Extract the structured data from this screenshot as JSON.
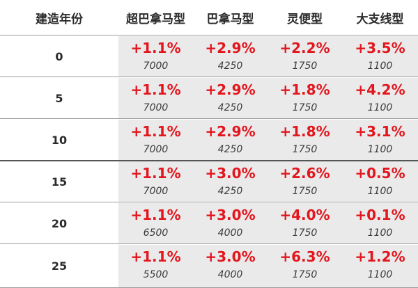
{
  "headers": [
    "建造年份",
    "超巴拿马型",
    "巴拿马型",
    "灵便型",
    "大支线型"
  ],
  "rows": [
    {
      "year": "0",
      "cells": [
        {
          "pct": "+1.1%",
          "val": "7000"
        },
        {
          "pct": "+2.9%",
          "val": "4250"
        },
        {
          "pct": "+2.2%",
          "val": "1750"
        },
        {
          "pct": "+3.5%",
          "val": "1100"
        }
      ]
    },
    {
      "year": "5",
      "cells": [
        {
          "pct": "+1.1%",
          "val": "7000"
        },
        {
          "pct": "+2.9%",
          "val": "4250"
        },
        {
          "pct": "+1.8%",
          "val": "1750"
        },
        {
          "pct": "+4.2%",
          "val": "1100"
        }
      ]
    },
    {
      "year": "10",
      "cells": [
        {
          "pct": "+1.1%",
          "val": "7000"
        },
        {
          "pct": "+2.9%",
          "val": "4250"
        },
        {
          "pct": "+1.8%",
          "val": "1750"
        },
        {
          "pct": "+3.1%",
          "val": "1100"
        }
      ]
    },
    {
      "year": "15",
      "cells": [
        {
          "pct": "+1.1%",
          "val": "7000"
        },
        {
          "pct": "+3.0%",
          "val": "4250"
        },
        {
          "pct": "+2.6%",
          "val": "1750"
        },
        {
          "pct": "+0.5%",
          "val": "1100"
        }
      ]
    },
    {
      "year": "20",
      "cells": [
        {
          "pct": "+1.1%",
          "val": "6500"
        },
        {
          "pct": "+3.0%",
          "val": "4000"
        },
        {
          "pct": "+4.0%",
          "val": "1750"
        },
        {
          "pct": "+0.1%",
          "val": "1100"
        }
      ]
    },
    {
      "year": "25",
      "cells": [
        {
          "pct": "+1.1%",
          "val": "5500"
        },
        {
          "pct": "+3.0%",
          "val": "4000"
        },
        {
          "pct": "+6.3%",
          "val": "1750"
        },
        {
          "pct": "+1.2%",
          "val": "1100"
        }
      ]
    }
  ],
  "colors": {
    "change": "#e3151d",
    "cell_bg": "#eaeaea",
    "text": "#2b2b2b"
  }
}
